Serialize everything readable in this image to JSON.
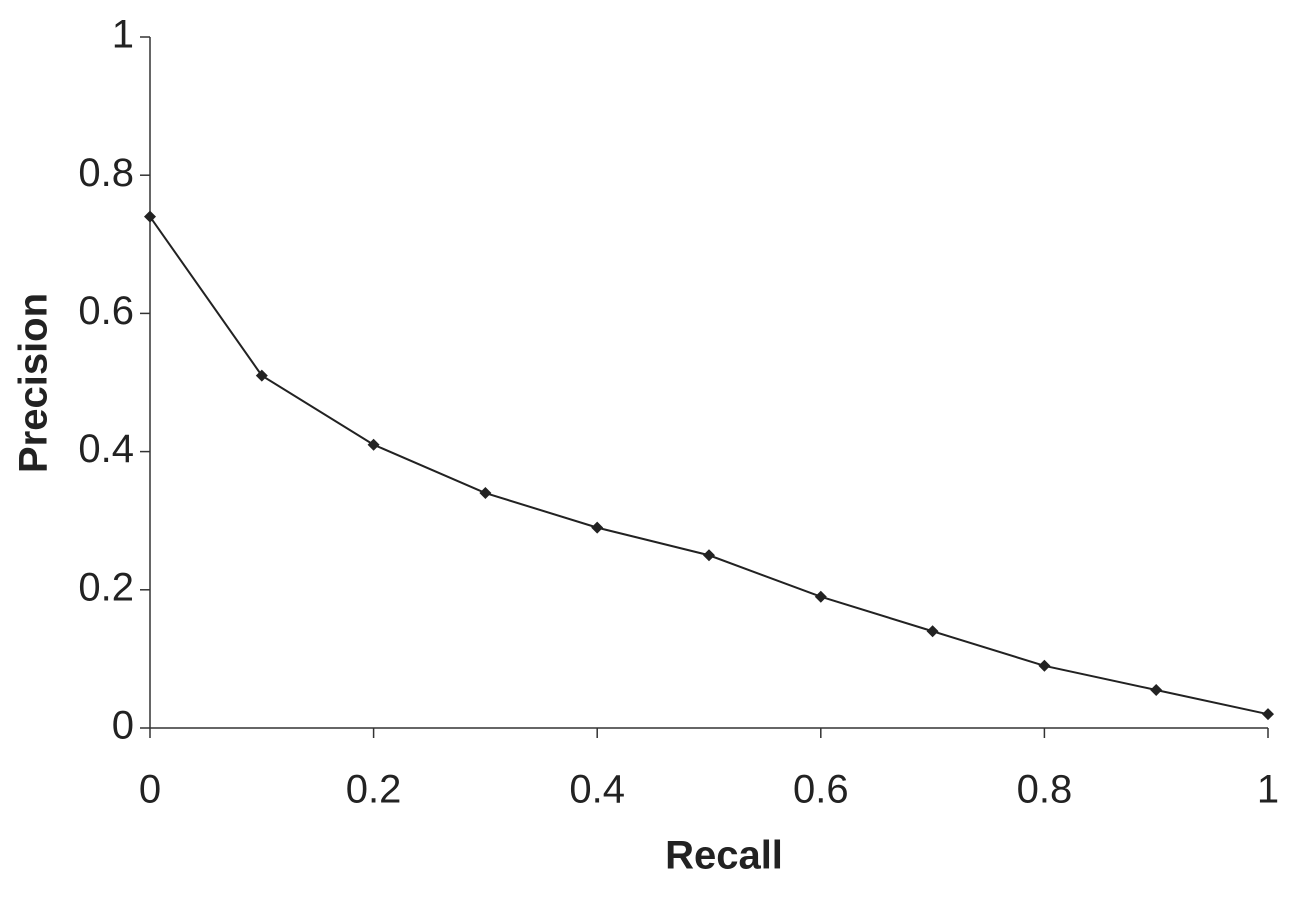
{
  "chart_data": {
    "type": "line",
    "xlabel": "Recall",
    "ylabel": "Precision",
    "x": [
      0,
      0.1,
      0.2,
      0.3,
      0.4,
      0.5,
      0.6,
      0.7,
      0.8,
      0.9,
      1
    ],
    "values": [
      0.74,
      0.51,
      0.41,
      0.34,
      0.29,
      0.25,
      0.19,
      0.14,
      0.09,
      0.055,
      0.02
    ],
    "color": "#222222",
    "xlim": [
      0,
      1
    ],
    "xticks": [
      0,
      0.2,
      0.4,
      0.6,
      0.8,
      1
    ],
    "ylim": [
      0,
      1
    ],
    "yticks": [
      0,
      0.2,
      0.4,
      0.6,
      0.8,
      1
    ],
    "grid": false
  }
}
